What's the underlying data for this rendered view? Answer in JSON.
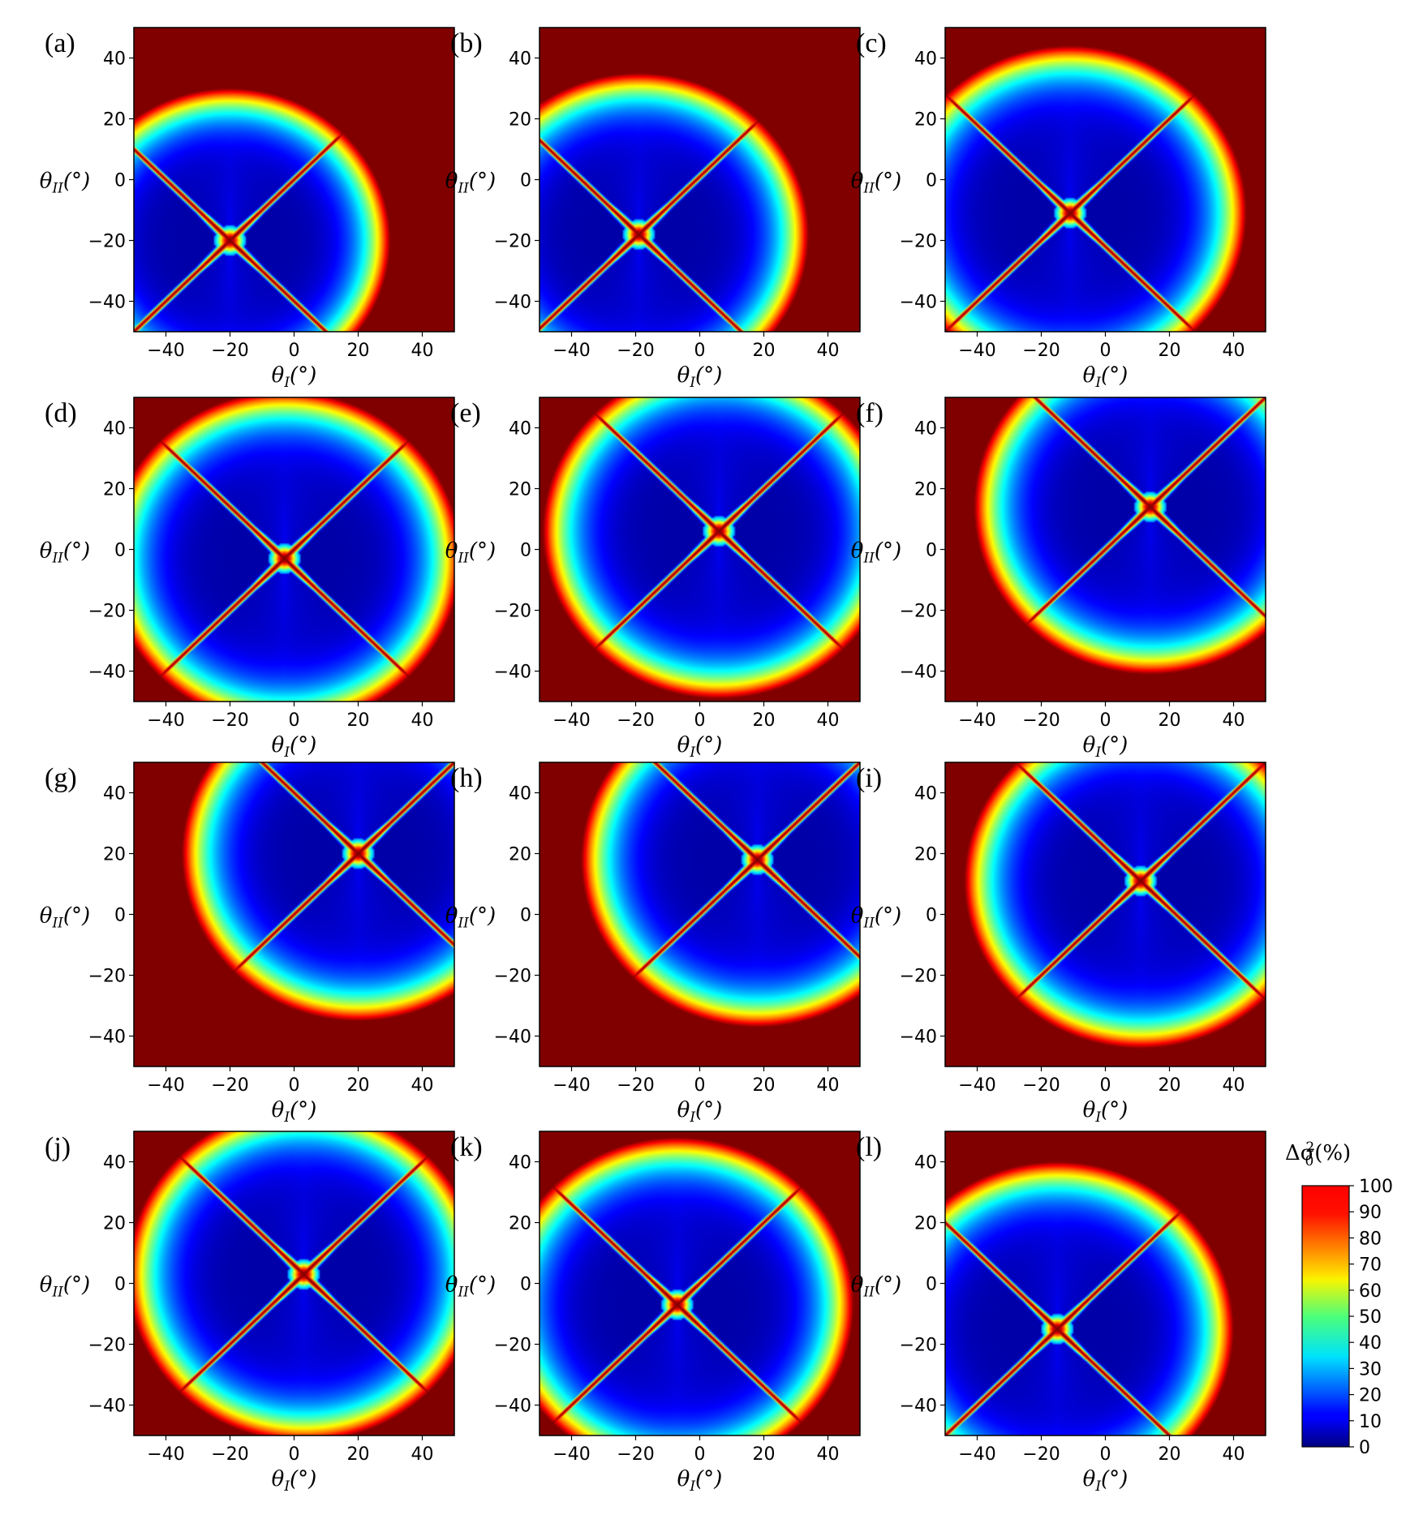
{
  "chart_data": [
    {
      "panel": "(a)",
      "type": "heatmap",
      "center": [
        -20,
        -20
      ],
      "cross": {
        "a": 1.0,
        "b": -1.0
      },
      "radius": 50,
      "xlim": [
        -50,
        50
      ],
      "ylim": [
        -50,
        50
      ],
      "xticks": [
        -40,
        -20,
        0,
        20,
        40
      ],
      "yticks": [
        -40,
        -20,
        0,
        20,
        40
      ],
      "xlabel": "θI(°)",
      "ylabel": "θII(°)"
    },
    {
      "panel": "(b)",
      "type": "heatmap",
      "center": [
        -19,
        -18
      ],
      "cross": {
        "a": 1.0,
        "b": -1.0
      },
      "radius": 53,
      "xlim": [
        -50,
        50
      ],
      "ylim": [
        -50,
        50
      ],
      "xticks": [
        -40,
        -20,
        0,
        20,
        40
      ],
      "yticks": [
        -40,
        -20,
        0,
        20,
        40
      ],
      "xlabel": "θI(°)",
      "ylabel": "θII(°)"
    },
    {
      "panel": "(c)",
      "type": "heatmap",
      "center": [
        -11,
        -11
      ],
      "cross": {
        "a": 1.0,
        "b": -1.0
      },
      "radius": 55,
      "xlim": [
        -50,
        50
      ],
      "ylim": [
        -50,
        50
      ],
      "xticks": [
        -40,
        -20,
        0,
        20,
        40
      ],
      "yticks": [
        -40,
        -20,
        0,
        20,
        40
      ],
      "xlabel": "θI(°)",
      "ylabel": "θII(°)"
    },
    {
      "panel": "(d)",
      "type": "heatmap",
      "center": [
        -3,
        -3
      ],
      "cross": {
        "a": 1.0,
        "b": -1.0
      },
      "radius": 55,
      "xlim": [
        -50,
        50
      ],
      "ylim": [
        -50,
        50
      ],
      "xticks": [
        -40,
        -20,
        0,
        20,
        40
      ],
      "yticks": [
        -40,
        -20,
        0,
        20,
        40
      ],
      "xlabel": "θI(°)",
      "ylabel": "θII(°)"
    },
    {
      "panel": "(e)",
      "type": "heatmap",
      "center": [
        6,
        6
      ],
      "cross": {
        "a": 1.0,
        "b": -1.0
      },
      "radius": 55,
      "xlim": [
        -50,
        50
      ],
      "ylim": [
        -50,
        50
      ],
      "xticks": [
        -40,
        -20,
        0,
        20,
        40
      ],
      "yticks": [
        -40,
        -20,
        0,
        20,
        40
      ],
      "xlabel": "θI(°)",
      "ylabel": "θII(°)"
    },
    {
      "panel": "(f)",
      "type": "heatmap",
      "center": [
        14,
        14
      ],
      "cross": {
        "a": 1.0,
        "b": -1.0
      },
      "radius": 55,
      "xlim": [
        -50,
        50
      ],
      "ylim": [
        -50,
        50
      ],
      "xticks": [
        -40,
        -20,
        0,
        20,
        40
      ],
      "yticks": [
        -40,
        -20,
        0,
        20,
        40
      ],
      "xlabel": "θI(°)",
      "ylabel": "θII(°)"
    },
    {
      "panel": "(g)",
      "type": "heatmap",
      "center": [
        20,
        20
      ],
      "cross": {
        "a": 1.0,
        "b": -1.0
      },
      "radius": 55,
      "xlim": [
        -50,
        50
      ],
      "ylim": [
        -50,
        50
      ],
      "xticks": [
        -40,
        -20,
        0,
        20,
        40
      ],
      "yticks": [
        -40,
        -20,
        0,
        20,
        40
      ],
      "xlabel": "θI(°)",
      "ylabel": "θII(°)"
    },
    {
      "panel": "(h)",
      "type": "heatmap",
      "center": [
        18,
        18
      ],
      "cross": {
        "a": 1.0,
        "b": -1.0
      },
      "radius": 55,
      "xlim": [
        -50,
        50
      ],
      "ylim": [
        -50,
        50
      ],
      "xticks": [
        -40,
        -20,
        0,
        20,
        40
      ],
      "yticks": [
        -40,
        -20,
        0,
        20,
        40
      ],
      "xlabel": "θI(°)",
      "ylabel": "θII(°)"
    },
    {
      "panel": "(i)",
      "type": "heatmap",
      "center": [
        11,
        11
      ],
      "cross": {
        "a": 1.0,
        "b": -1.0
      },
      "radius": 55,
      "xlim": [
        -50,
        50
      ],
      "ylim": [
        -50,
        50
      ],
      "xticks": [
        -40,
        -20,
        0,
        20,
        40
      ],
      "yticks": [
        -40,
        -20,
        0,
        20,
        40
      ],
      "xlabel": "θI(°)",
      "ylabel": "θII(°)"
    },
    {
      "panel": "(j)",
      "type": "heatmap",
      "center": [
        3,
        3
      ],
      "cross": {
        "a": 1.0,
        "b": -1.0
      },
      "radius": 55,
      "xlim": [
        -50,
        50
      ],
      "ylim": [
        -50,
        50
      ],
      "xticks": [
        -40,
        -20,
        0,
        20,
        40
      ],
      "yticks": [
        -40,
        -20,
        0,
        20,
        40
      ],
      "xlabel": "θI(°)",
      "ylabel": "θII(°)"
    },
    {
      "panel": "(k)",
      "type": "heatmap",
      "center": [
        -7,
        -7
      ],
      "cross": {
        "a": 1.0,
        "b": -1.0
      },
      "radius": 55,
      "xlim": [
        -50,
        50
      ],
      "ylim": [
        -50,
        50
      ],
      "xticks": [
        -40,
        -20,
        0,
        20,
        40
      ],
      "yticks": [
        -40,
        -20,
        0,
        20,
        40
      ],
      "xlabel": "θI(°)",
      "ylabel": "θII(°)"
    },
    {
      "panel": "(l)",
      "type": "heatmap",
      "center": [
        -15,
        -15
      ],
      "cross": {
        "a": 1.0,
        "b": -1.0
      },
      "radius": 55,
      "xlim": [
        -50,
        50
      ],
      "ylim": [
        -50,
        50
      ],
      "xticks": [
        -40,
        -20,
        0,
        20,
        40
      ],
      "yticks": [
        -40,
        -20,
        0,
        20,
        40
      ],
      "xlabel": "θI(°)",
      "ylabel": "θII(°)"
    }
  ],
  "colorbar": {
    "title": "Δσ0²(%)",
    "range": [
      0,
      100
    ],
    "ticks": [
      0,
      10,
      20,
      30,
      40,
      50,
      60,
      70,
      80,
      90,
      100
    ],
    "colormap": "jet"
  }
}
